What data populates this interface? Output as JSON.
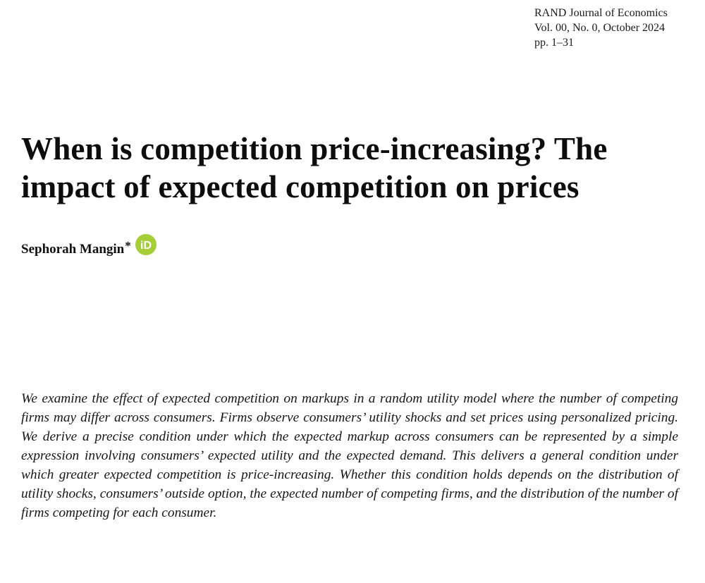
{
  "header": {
    "journal": "RAND Journal of Economics",
    "volume": "Vol. 00, No. 0, October 2024",
    "pages": "pp. 1–31"
  },
  "article": {
    "title": "When is competition price-increasing? The impact of expected competition on prices",
    "author": "Sephorah Mangin",
    "author_mark": "*",
    "orcid_icon": "orcid-icon",
    "orcid_label": "iD",
    "orcid_color": "#a6ce39",
    "abstract": "We examine the effect of expected competition on markups in a random utility model where the number of competing firms may differ across consumers. Firms observe consumers’ utility shocks and set prices using personalized pricing. We derive a precise condition under which the expected markup across consumers can be represented by a simple expression involving consumers’ expected utility and the expected demand. This delivers a general condition under which greater expected competition is price-increasing. Whether this condition holds depends on the distribution of utility shocks, consumers’ outside option, the expected number of competing firms, and the distribution of the number of firms competing for each consumer."
  }
}
